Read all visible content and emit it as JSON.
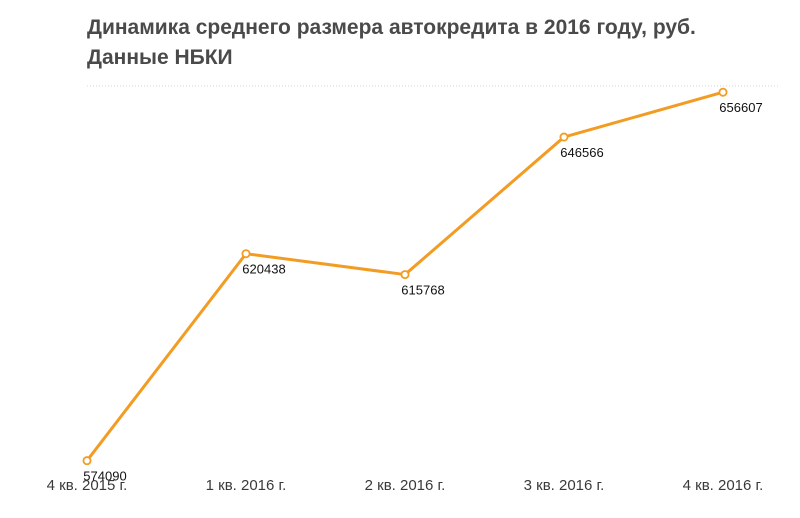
{
  "title_lines": [
    "Динамика среднего размера автокредита в 2016 году, руб.",
    "Данные НБКИ"
  ],
  "chart_data": {
    "type": "line",
    "categories": [
      "4 кв. 2015 г.",
      "1 кв. 2016 г.",
      "2 кв. 2016 г.",
      "3 кв. 2016 г.",
      "4 кв. 2016 г."
    ],
    "series": [
      {
        "values": [
          574090,
          620438,
          615768,
          646566,
          656607
        ],
        "color": "#f39c23"
      }
    ],
    "data_labels": [
      "574090",
      "620438",
      "615768",
      "646566",
      "656607"
    ],
    "ylim": [
      572000,
      658000
    ],
    "grid": "top reference line only (dotted)",
    "legend": "none",
    "xlabel": "",
    "ylabel": ""
  }
}
